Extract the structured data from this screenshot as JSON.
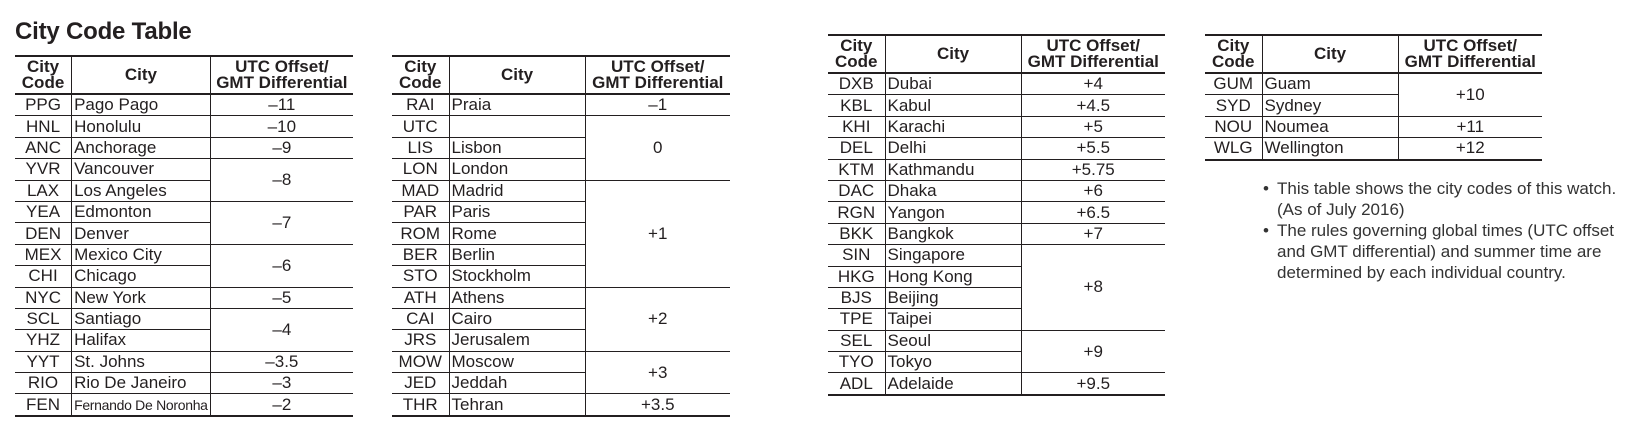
{
  "title": "City Code Table",
  "headers": {
    "code": [
      "City",
      "Code"
    ],
    "city": "City",
    "offset": [
      "UTC Offset/",
      "GMT Differential"
    ]
  },
  "tables": [
    {
      "groups": [
        {
          "offset": "–11",
          "rows": [
            {
              "code": "PPG",
              "city": "Pago Pago"
            }
          ]
        },
        {
          "offset": "–10",
          "rows": [
            {
              "code": "HNL",
              "city": "Honolulu"
            }
          ]
        },
        {
          "offset": "–9",
          "rows": [
            {
              "code": "ANC",
              "city": "Anchorage"
            }
          ]
        },
        {
          "offset": "–8",
          "rows": [
            {
              "code": "YVR",
              "city": "Vancouver"
            },
            {
              "code": "LAX",
              "city": "Los Angeles"
            }
          ]
        },
        {
          "offset": "–7",
          "rows": [
            {
              "code": "YEA",
              "city": "Edmonton"
            },
            {
              "code": "DEN",
              "city": "Denver"
            }
          ]
        },
        {
          "offset": "–6",
          "rows": [
            {
              "code": "MEX",
              "city": "Mexico City"
            },
            {
              "code": "CHI",
              "city": "Chicago"
            }
          ]
        },
        {
          "offset": "–5",
          "rows": [
            {
              "code": "NYC",
              "city": "New York"
            }
          ]
        },
        {
          "offset": "–4",
          "rows": [
            {
              "code": "SCL",
              "city": "Santiago"
            },
            {
              "code": "YHZ",
              "city": "Halifax"
            }
          ]
        },
        {
          "offset": "–3.5",
          "rows": [
            {
              "code": "YYT",
              "city": "St. Johns"
            }
          ]
        },
        {
          "offset": "–3",
          "rows": [
            {
              "code": "RIO",
              "city": "Rio De Janeiro"
            }
          ]
        },
        {
          "offset": "–2",
          "rows": [
            {
              "code": "FEN",
              "city": "Fernando De Noronha",
              "small": true
            }
          ]
        }
      ]
    },
    {
      "groups": [
        {
          "offset": "–1",
          "rows": [
            {
              "code": "RAI",
              "city": "Praia"
            }
          ]
        },
        {
          "offset": "0",
          "rows": [
            {
              "code": "UTC",
              "city": ""
            },
            {
              "code": "LIS",
              "city": "Lisbon"
            },
            {
              "code": "LON",
              "city": "London"
            }
          ]
        },
        {
          "offset": "+1",
          "rows": [
            {
              "code": "MAD",
              "city": "Madrid"
            },
            {
              "code": "PAR",
              "city": "Paris"
            },
            {
              "code": "ROM",
              "city": "Rome"
            },
            {
              "code": "BER",
              "city": "Berlin"
            },
            {
              "code": "STO",
              "city": "Stockholm"
            }
          ]
        },
        {
          "offset": "+2",
          "rows": [
            {
              "code": "ATH",
              "city": "Athens"
            },
            {
              "code": "CAI",
              "city": "Cairo"
            },
            {
              "code": "JRS",
              "city": "Jerusalem"
            }
          ]
        },
        {
          "offset": "+3",
          "rows": [
            {
              "code": "MOW",
              "city": "Moscow"
            },
            {
              "code": "JED",
              "city": "Jeddah"
            }
          ]
        },
        {
          "offset": "+3.5",
          "rows": [
            {
              "code": "THR",
              "city": "Tehran"
            }
          ]
        }
      ]
    },
    {
      "groups": [
        {
          "offset": "+4",
          "rows": [
            {
              "code": "DXB",
              "city": "Dubai"
            }
          ]
        },
        {
          "offset": "+4.5",
          "rows": [
            {
              "code": "KBL",
              "city": "Kabul"
            }
          ]
        },
        {
          "offset": "+5",
          "rows": [
            {
              "code": "KHI",
              "city": "Karachi"
            }
          ]
        },
        {
          "offset": "+5.5",
          "rows": [
            {
              "code": "DEL",
              "city": "Delhi"
            }
          ]
        },
        {
          "offset": "+5.75",
          "rows": [
            {
              "code": "KTM",
              "city": "Kathmandu"
            }
          ]
        },
        {
          "offset": "+6",
          "rows": [
            {
              "code": "DAC",
              "city": "Dhaka"
            }
          ]
        },
        {
          "offset": "+6.5",
          "rows": [
            {
              "code": "RGN",
              "city": "Yangon"
            }
          ]
        },
        {
          "offset": "+7",
          "rows": [
            {
              "code": "BKK",
              "city": "Bangkok"
            }
          ]
        },
        {
          "offset": "+8",
          "rows": [
            {
              "code": "SIN",
              "city": "Singapore"
            },
            {
              "code": "HKG",
              "city": "Hong Kong"
            },
            {
              "code": "BJS",
              "city": "Beijing"
            },
            {
              "code": "TPE",
              "city": "Taipei"
            }
          ]
        },
        {
          "offset": "+9",
          "rows": [
            {
              "code": "SEL",
              "city": "Seoul"
            },
            {
              "code": "TYO",
              "city": "Tokyo"
            }
          ]
        },
        {
          "offset": "+9.5",
          "rows": [
            {
              "code": "ADL",
              "city": "Adelaide"
            }
          ]
        }
      ]
    },
    {
      "groups": [
        {
          "offset": "+10",
          "rows": [
            {
              "code": "GUM",
              "city": "Guam"
            },
            {
              "code": "SYD",
              "city": "Sydney"
            }
          ]
        },
        {
          "offset": "+11",
          "rows": [
            {
              "code": "NOU",
              "city": "Noumea"
            }
          ]
        },
        {
          "offset": "+12",
          "rows": [
            {
              "code": "WLG",
              "city": "Wellington"
            }
          ]
        }
      ]
    }
  ],
  "notes": [
    "This table shows the city codes of this watch. (As of July 2016)",
    "The rules governing global times (UTC offset and GMT differential) and summer time are determined by each individual country."
  ]
}
